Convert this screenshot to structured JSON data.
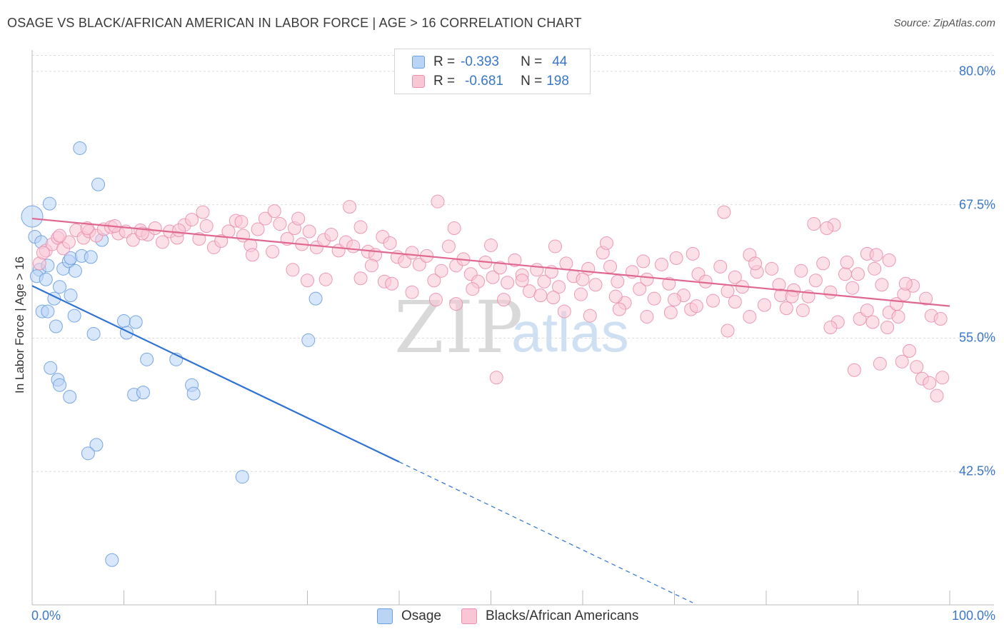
{
  "title": "OSAGE VS BLACK/AFRICAN AMERICAN IN LABOR FORCE | AGE > 16 CORRELATION CHART",
  "source": "Source: ZipAtlas.com",
  "watermark": {
    "zip": "ZIP",
    "atlas": "atlas"
  },
  "legend": {
    "r_label": "R =",
    "n_label": "N =",
    "series": [
      {
        "name": "Osage",
        "r": "-0.393",
        "n": "44",
        "color": "#6a9fe0",
        "fill": "#b9d4f5"
      },
      {
        "name": "Blacks/African Americans",
        "r": "-0.681",
        "n": "198",
        "color": "#ea8fae",
        "fill": "#f9c6d6"
      }
    ]
  },
  "chart_data": {
    "type": "scatter",
    "title": "OSAGE VS BLACK/AFRICAN AMERICAN IN LABOR FORCE | AGE > 16 CORRELATION CHART",
    "xlabel": "",
    "ylabel": "In Labor Force | Age > 16",
    "xlim": [
      0,
      100
    ],
    "ylim": [
      30,
      82
    ],
    "x_tick_labels": [
      {
        "value": 0,
        "label": "0.0%"
      },
      {
        "value": 100,
        "label": "100.0%"
      }
    ],
    "y_tick_labels": [
      {
        "value": 80.0,
        "label": "80.0%"
      },
      {
        "value": 67.5,
        "label": "67.5%"
      },
      {
        "value": 55.0,
        "label": "55.0%"
      },
      {
        "value": 42.5,
        "label": "42.5%"
      }
    ],
    "grid": true,
    "legend_position": "top-center",
    "series": [
      {
        "name": "Osage",
        "color": "#6a9fe0",
        "trend": {
          "x0": 0.0,
          "y0": 59.9,
          "x1": 40.0,
          "y1": 43.4,
          "dashed_to_x": 72.0
        },
        "points": [
          [
            0.0,
            66.4
          ],
          [
            0.3,
            64.5
          ],
          [
            1.0,
            64.0
          ],
          [
            0.8,
            61.4
          ],
          [
            0.5,
            60.8
          ],
          [
            1.5,
            60.5
          ],
          [
            3.0,
            59.8
          ],
          [
            1.7,
            61.8
          ],
          [
            3.4,
            61.5
          ],
          [
            4.0,
            62.2
          ],
          [
            4.2,
            59.0
          ],
          [
            2.4,
            58.7
          ],
          [
            1.1,
            57.5
          ],
          [
            1.7,
            57.5
          ],
          [
            4.6,
            57.1
          ],
          [
            4.2,
            62.5
          ],
          [
            5.4,
            62.7
          ],
          [
            6.4,
            62.6
          ],
          [
            7.2,
            69.4
          ],
          [
            5.2,
            72.8
          ],
          [
            7.6,
            64.2
          ],
          [
            1.9,
            67.6
          ],
          [
            2.6,
            56.1
          ],
          [
            6.7,
            55.4
          ],
          [
            10.0,
            56.6
          ],
          [
            11.3,
            56.5
          ],
          [
            10.3,
            55.5
          ],
          [
            12.5,
            53.0
          ],
          [
            15.7,
            53.0
          ],
          [
            2.0,
            52.2
          ],
          [
            2.8,
            51.1
          ],
          [
            3.0,
            50.6
          ],
          [
            4.1,
            49.5
          ],
          [
            11.1,
            49.7
          ],
          [
            12.1,
            49.9
          ],
          [
            17.4,
            50.6
          ],
          [
            17.6,
            49.8
          ],
          [
            7.0,
            45.0
          ],
          [
            6.1,
            44.2
          ],
          [
            22.9,
            42.0
          ],
          [
            30.1,
            54.8
          ],
          [
            30.9,
            58.7
          ],
          [
            8.7,
            34.2
          ],
          [
            4.7,
            61.3
          ]
        ]
      },
      {
        "name": "Blacks/African Americans",
        "color": "#ea8fae",
        "trend": {
          "x0": 0.0,
          "y0": 66.2,
          "x1": 100.0,
          "y1": 58.0
        },
        "points": [
          [
            0.8,
            62.0
          ],
          [
            1.5,
            63.2
          ],
          [
            2.2,
            63.8
          ],
          [
            2.8,
            64.4
          ],
          [
            3.4,
            63.4
          ],
          [
            4.0,
            64.0
          ],
          [
            4.8,
            65.1
          ],
          [
            5.6,
            64.4
          ],
          [
            6.2,
            65.0
          ],
          [
            7.0,
            64.6
          ],
          [
            7.8,
            65.2
          ],
          [
            8.6,
            65.4
          ],
          [
            9.4,
            64.8
          ],
          [
            10.2,
            65.0
          ],
          [
            11.0,
            64.2
          ],
          [
            11.8,
            65.1
          ],
          [
            12.6,
            64.7
          ],
          [
            13.4,
            65.3
          ],
          [
            14.2,
            64.0
          ],
          [
            15.0,
            65.0
          ],
          [
            15.8,
            64.4
          ],
          [
            16.6,
            65.6
          ],
          [
            17.4,
            66.1
          ],
          [
            18.2,
            64.3
          ],
          [
            19.0,
            65.5
          ],
          [
            19.8,
            63.5
          ],
          [
            20.6,
            64.1
          ],
          [
            21.4,
            65.0
          ],
          [
            22.2,
            66.0
          ],
          [
            23.0,
            64.6
          ],
          [
            23.8,
            63.7
          ],
          [
            24.6,
            65.2
          ],
          [
            25.4,
            66.2
          ],
          [
            26.2,
            63.1
          ],
          [
            27.0,
            65.7
          ],
          [
            27.8,
            64.3
          ],
          [
            28.6,
            65.3
          ],
          [
            29.4,
            63.8
          ],
          [
            30.2,
            65.0
          ],
          [
            31.0,
            63.5
          ],
          [
            31.8,
            64.2
          ],
          [
            32.6,
            64.7
          ],
          [
            33.4,
            63.2
          ],
          [
            34.2,
            64.0
          ],
          [
            35.0,
            63.6
          ],
          [
            35.8,
            65.4
          ],
          [
            36.6,
            63.1
          ],
          [
            37.4,
            62.8
          ],
          [
            38.2,
            64.5
          ],
          [
            39.0,
            63.9
          ],
          [
            39.8,
            62.6
          ],
          [
            40.6,
            62.2
          ],
          [
            41.4,
            63.0
          ],
          [
            42.2,
            61.9
          ],
          [
            43.0,
            62.7
          ],
          [
            43.8,
            60.4
          ],
          [
            44.6,
            61.3
          ],
          [
            45.4,
            63.6
          ],
          [
            46.2,
            61.8
          ],
          [
            47.0,
            62.4
          ],
          [
            47.8,
            61.0
          ],
          [
            48.6,
            60.3
          ],
          [
            49.4,
            62.1
          ],
          [
            50.2,
            60.7
          ],
          [
            51.0,
            61.6
          ],
          [
            51.8,
            60.2
          ],
          [
            52.6,
            62.3
          ],
          [
            53.4,
            60.9
          ],
          [
            54.2,
            59.4
          ],
          [
            55.0,
            61.4
          ],
          [
            55.8,
            60.3
          ],
          [
            56.6,
            61.2
          ],
          [
            57.4,
            59.8
          ],
          [
            58.2,
            62.0
          ],
          [
            59.0,
            60.8
          ],
          [
            59.8,
            59.1
          ],
          [
            60.6,
            61.5
          ],
          [
            61.4,
            60.0
          ],
          [
            62.2,
            63.0
          ],
          [
            63.0,
            61.7
          ],
          [
            63.8,
            60.3
          ],
          [
            64.6,
            58.3
          ],
          [
            65.4,
            61.2
          ],
          [
            66.2,
            59.6
          ],
          [
            67.0,
            60.5
          ],
          [
            67.8,
            58.7
          ],
          [
            68.6,
            61.9
          ],
          [
            69.4,
            60.1
          ],
          [
            70.2,
            62.5
          ],
          [
            71.0,
            59.0
          ],
          [
            71.8,
            57.7
          ],
          [
            72.6,
            61.0
          ],
          [
            73.4,
            60.3
          ],
          [
            74.2,
            58.5
          ],
          [
            75.0,
            61.7
          ],
          [
            75.8,
            59.4
          ],
          [
            76.6,
            60.7
          ],
          [
            77.4,
            59.8
          ],
          [
            78.2,
            62.8
          ],
          [
            79.0,
            61.2
          ],
          [
            79.8,
            58.1
          ],
          [
            80.6,
            61.5
          ],
          [
            81.4,
            60.0
          ],
          [
            82.2,
            57.8
          ],
          [
            83.0,
            59.5
          ],
          [
            83.8,
            61.3
          ],
          [
            84.6,
            58.9
          ],
          [
            85.4,
            60.4
          ],
          [
            86.2,
            62.0
          ],
          [
            87.0,
            59.3
          ],
          [
            87.8,
            56.5
          ],
          [
            88.6,
            61.0
          ],
          [
            89.4,
            59.7
          ],
          [
            90.2,
            56.8
          ],
          [
            91.0,
            57.6
          ],
          [
            91.8,
            61.5
          ],
          [
            92.6,
            60.0
          ],
          [
            93.4,
            57.4
          ],
          [
            94.2,
            58.2
          ],
          [
            95.0,
            59.1
          ],
          [
            1.2,
            63.0
          ],
          [
            3.0,
            64.6
          ],
          [
            6.0,
            65.3
          ],
          [
            9.0,
            65.5
          ],
          [
            12.0,
            64.8
          ],
          [
            16.0,
            65.1
          ],
          [
            18.6,
            66.8
          ],
          [
            22.8,
            65.9
          ],
          [
            26.4,
            66.9
          ],
          [
            29.0,
            66.2
          ],
          [
            34.6,
            67.3
          ],
          [
            44.2,
            67.8
          ],
          [
            46.0,
            65.3
          ],
          [
            50.0,
            63.7
          ],
          [
            57.0,
            63.6
          ],
          [
            62.6,
            63.9
          ],
          [
            66.6,
            62.2
          ],
          [
            72.0,
            62.9
          ],
          [
            75.4,
            66.8
          ],
          [
            78.8,
            62.0
          ],
          [
            85.2,
            65.7
          ],
          [
            87.4,
            65.6
          ],
          [
            86.6,
            65.3
          ],
          [
            88.8,
            62.1
          ],
          [
            91.0,
            62.9
          ],
          [
            92.0,
            62.8
          ],
          [
            93.4,
            62.3
          ],
          [
            96.0,
            59.9
          ],
          [
            98.0,
            57.1
          ],
          [
            99.0,
            56.8
          ],
          [
            24.0,
            62.8
          ],
          [
            32.0,
            60.5
          ],
          [
            35.8,
            60.6
          ],
          [
            38.4,
            60.3
          ],
          [
            41.4,
            59.3
          ],
          [
            46.2,
            58.2
          ],
          [
            50.6,
            51.3
          ],
          [
            53.4,
            60.4
          ],
          [
            55.4,
            59.0
          ],
          [
            58.0,
            57.5
          ],
          [
            60.8,
            57.1
          ],
          [
            64.0,
            57.7
          ],
          [
            67.0,
            57.0
          ],
          [
            69.6,
            57.4
          ],
          [
            72.4,
            58.0
          ],
          [
            75.8,
            55.7
          ],
          [
            78.2,
            57.0
          ],
          [
            81.6,
            59.0
          ],
          [
            84.0,
            57.6
          ],
          [
            87.0,
            56.0
          ],
          [
            89.6,
            52.0
          ],
          [
            91.6,
            56.5
          ],
          [
            93.2,
            56.0
          ],
          [
            94.4,
            57.0
          ],
          [
            95.6,
            53.8
          ],
          [
            96.4,
            52.3
          ],
          [
            97.0,
            51.2
          ],
          [
            97.8,
            50.8
          ],
          [
            98.6,
            49.6
          ],
          [
            99.2,
            51.3
          ],
          [
            92.4,
            52.6
          ],
          [
            94.8,
            52.8
          ],
          [
            28.4,
            61.4
          ],
          [
            30.0,
            60.4
          ],
          [
            37.0,
            61.8
          ],
          [
            39.2,
            60.1
          ],
          [
            44.0,
            58.6
          ],
          [
            48.0,
            59.6
          ],
          [
            51.4,
            58.6
          ],
          [
            56.8,
            58.8
          ],
          [
            60.0,
            60.5
          ],
          [
            63.6,
            58.9
          ],
          [
            70.0,
            58.6
          ],
          [
            76.6,
            58.4
          ],
          [
            82.8,
            58.9
          ],
          [
            90.0,
            61.0
          ],
          [
            95.2,
            60.1
          ],
          [
            97.4,
            58.7
          ]
        ]
      }
    ]
  }
}
